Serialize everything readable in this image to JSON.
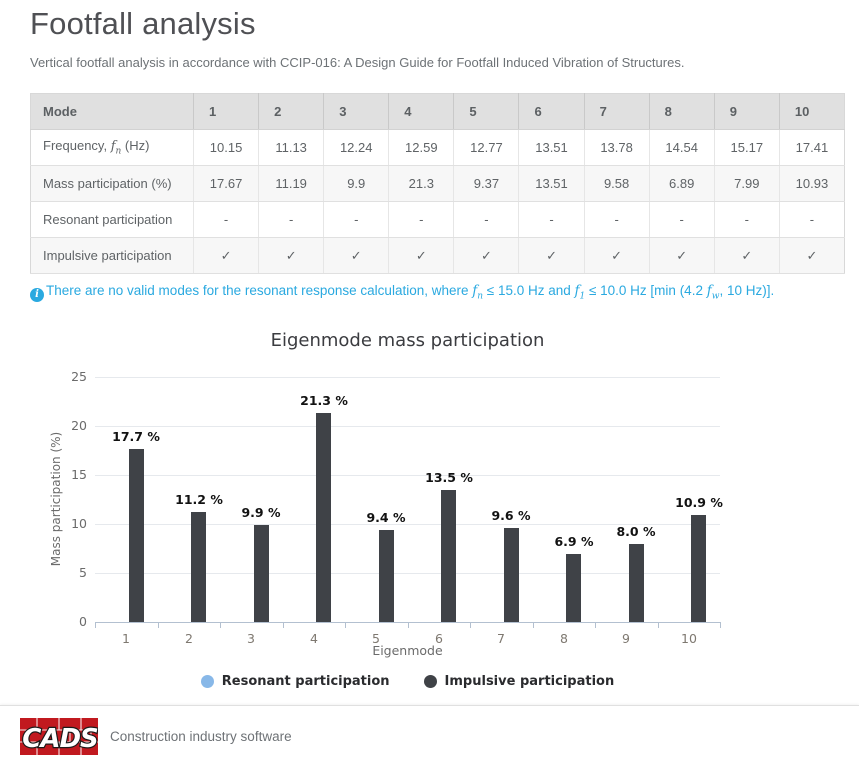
{
  "page": {
    "title": "Footfall analysis",
    "subtitle": "Vertical footfall analysis in accordance with CCIP-016: A Design Guide for Footfall Induced Vibration of Structures."
  },
  "table": {
    "header": [
      "Mode",
      "1",
      "2",
      "3",
      "4",
      "5",
      "6",
      "7",
      "8",
      "9",
      "10"
    ],
    "rows": [
      {
        "label": {
          "pre": "Frequency, ",
          "math": "f",
          "sub": "n",
          "post": " (Hz)"
        },
        "values": [
          "10.15",
          "11.13",
          "12.24",
          "12.59",
          "12.77",
          "13.51",
          "13.78",
          "14.54",
          "15.17",
          "17.41"
        ]
      },
      {
        "label": {
          "pre": "Mass participation (%)"
        },
        "values": [
          "17.67",
          "11.19",
          "9.9",
          "21.3",
          "9.37",
          "13.51",
          "9.58",
          "6.89",
          "7.99",
          "10.93"
        ]
      },
      {
        "label": {
          "pre": "Resonant participation"
        },
        "values": [
          "-",
          "-",
          "-",
          "-",
          "-",
          "-",
          "-",
          "-",
          "-",
          "-"
        ]
      },
      {
        "label": {
          "pre": "Impulsive participation"
        },
        "values": [
          "✓",
          "✓",
          "✓",
          "✓",
          "✓",
          "✓",
          "✓",
          "✓",
          "✓",
          "✓"
        ]
      }
    ]
  },
  "note": {
    "parts": [
      {
        "t": "text",
        "v": "There are no valid modes for the resonant response calculation, where "
      },
      {
        "t": "math",
        "base": "f",
        "sub": "n"
      },
      {
        "t": "text",
        "v": " ≤ 15.0 Hz and "
      },
      {
        "t": "math",
        "base": "f",
        "sub": "1"
      },
      {
        "t": "text",
        "v": " ≤ 10.0 Hz [min (4.2 "
      },
      {
        "t": "math",
        "base": "f",
        "sub": "w"
      },
      {
        "t": "text",
        "v": ", 10 Hz)]."
      }
    ]
  },
  "chart_data": {
    "type": "bar",
    "title": "Eigenmode mass participation",
    "xlabel": "Eigenmode",
    "ylabel": "Mass participation (%)",
    "categories": [
      "1",
      "2",
      "3",
      "4",
      "5",
      "6",
      "7",
      "8",
      "9",
      "10"
    ],
    "series": [
      {
        "name": "Resonant participation",
        "color": "#88b8e8",
        "values": [
          null,
          null,
          null,
          null,
          null,
          null,
          null,
          null,
          null,
          null
        ]
      },
      {
        "name": "Impulsive participation",
        "color": "#3f4247",
        "values": [
          17.67,
          11.19,
          9.9,
          21.3,
          9.37,
          13.51,
          9.58,
          6.89,
          7.99,
          10.93
        ]
      }
    ],
    "point_labels": [
      "17.7 %",
      "11.2 %",
      "9.9 %",
      "21.3 %",
      "9.4 %",
      "13.5 %",
      "9.6 %",
      "6.9 %",
      "8.0 %",
      "10.9 %"
    ],
    "ylim": [
      0,
      25
    ],
    "yticks": [
      0,
      5,
      10,
      15,
      20,
      25
    ],
    "grid": true,
    "legend_position": "bottom"
  },
  "footer": {
    "logo_text": "CADS",
    "tagline": "Construction industry software"
  }
}
